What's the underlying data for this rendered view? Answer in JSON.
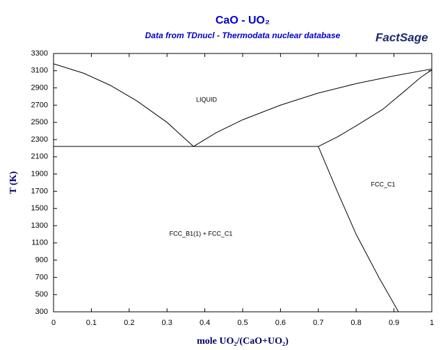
{
  "chart_data": {
    "type": "line",
    "title": "CaO - UO₂",
    "subtitle": "Data from TDnucl - Thermodata nuclear database",
    "logo": "FactSage",
    "x_label": "mole UO₂/(CaO+UO₂)",
    "y_label": "T (K)",
    "annotations": [
      "LIQUID",
      "FCC_C1",
      "FCC_B1(1) + FCC_C1"
    ],
    "xlim": [
      0,
      1
    ],
    "ylim": [
      300,
      3300
    ],
    "xticks": [
      0,
      0.1,
      0.2,
      0.3,
      0.4,
      0.5,
      0.6,
      0.7,
      0.8,
      0.9,
      1
    ],
    "yticks": [
      300,
      500,
      700,
      900,
      1100,
      1300,
      1500,
      1700,
      1900,
      2100,
      2300,
      2500,
      2700,
      2900,
      3100,
      3300
    ],
    "series": [
      {
        "color": "#000000",
        "x": [
          0,
          0.08,
          0.15,
          0.22,
          0.3,
          0.37
        ],
        "values": [
          3180,
          3070,
          2930,
          2750,
          2500,
          2220
        ]
      },
      {
        "color": "#000000",
        "x": [
          0.37,
          0.43,
          0.5,
          0.6,
          0.7,
          0.8,
          0.9,
          1
        ],
        "values": [
          2220,
          2380,
          2530,
          2700,
          2840,
          2950,
          3040,
          3120
        ]
      },
      {
        "color": "#000000",
        "x": [
          0,
          0.7
        ],
        "values": [
          2220,
          2220
        ]
      },
      {
        "color": "#000000",
        "x": [
          0.7,
          0.75,
          0.8,
          0.87,
          0.93,
          0.97,
          1
        ],
        "values": [
          2220,
          2330,
          2460,
          2650,
          2870,
          3020,
          3110
        ]
      },
      {
        "color": "#000000",
        "x": [
          0.7,
          0.75,
          0.8,
          0.86,
          0.912
        ],
        "values": [
          2220,
          1700,
          1200,
          700,
          300
        ]
      }
    ]
  }
}
